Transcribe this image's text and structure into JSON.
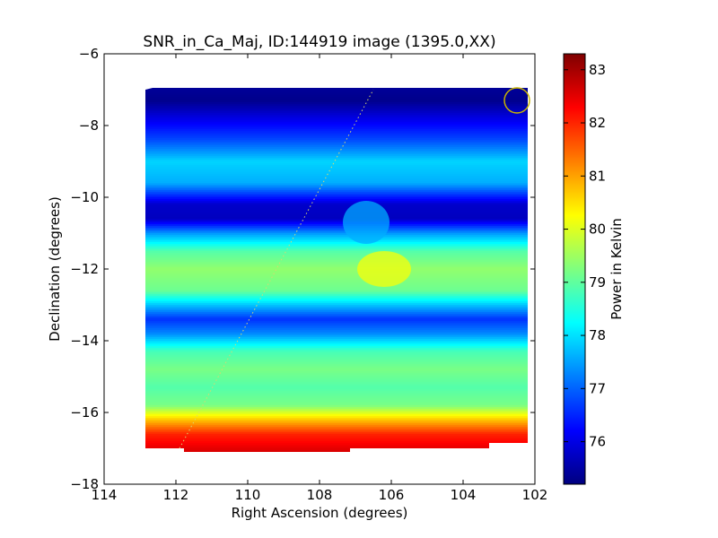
{
  "chart_data": {
    "type": "heatmap",
    "title": "SNR_in_Ca_Maj, ID:144919 image (1395.0,XX)",
    "xlabel": "Right Ascension (degrees)",
    "ylabel": "Declination (degrees)",
    "xlim": [
      114,
      102
    ],
    "ylim": [
      -18,
      -6
    ],
    "x_ticks": [
      114,
      112,
      110,
      108,
      106,
      104,
      102
    ],
    "x_tick_labels": [
      "114",
      "112",
      "110",
      "108",
      "106",
      "104",
      "102"
    ],
    "y_ticks": [
      -6,
      -8,
      -10,
      -12,
      -14,
      -16,
      -18
    ],
    "y_tick_labels": [
      "−6",
      "−8",
      "−10",
      "−12",
      "−14",
      "−16",
      "−18"
    ],
    "image_extent": {
      "ra_min": 102.2,
      "ra_max": 112.9,
      "dec_min": -17.1,
      "dec_max": -6.95
    },
    "dec_profile": {
      "dec": [
        -6.95,
        -7.3,
        -7.8,
        -8.4,
        -9.0,
        -9.6,
        -10.2,
        -10.6,
        -11.0,
        -11.5,
        -12.0,
        -12.6,
        -13.0,
        -13.4,
        -13.8,
        -14.3,
        -14.8,
        -15.3,
        -15.8,
        -16.2,
        -16.6,
        -17.1
      ],
      "power": [
        75.4,
        75.3,
        76.0,
        76.8,
        77.9,
        77.6,
        75.8,
        75.7,
        77.4,
        78.9,
        79.4,
        79.1,
        77.8,
        76.6,
        77.3,
        78.8,
        79.2,
        78.9,
        79.2,
        80.7,
        82.0,
        82.6
      ]
    },
    "features": [
      {
        "ra": 106.2,
        "dec": -12.0,
        "power": 80.2,
        "label": "bright spot"
      },
      {
        "ra": 106.7,
        "dec": -10.7,
        "power": 77.6,
        "label": "gap in dark band"
      }
    ],
    "source_track": {
      "ra_start": 111.9,
      "dec_start": -17.0,
      "ra_end": 106.5,
      "dec_end": -7.0
    },
    "beam_circle": {
      "ra": 102.5,
      "dec": -7.3,
      "radius_deg": 0.35
    },
    "colorbar": {
      "label": "Power in Kelvin",
      "min": 75.2,
      "max": 83.3,
      "ticks": [
        76,
        77,
        78,
        79,
        80,
        81,
        82,
        83
      ],
      "tick_labels": [
        "76",
        "77",
        "78",
        "79",
        "80",
        "81",
        "82",
        "83"
      ]
    },
    "colormap": "jet",
    "grid": false
  },
  "colors": {
    "track": "#d8d870",
    "beam_circle": "#c8b400",
    "jet_stops": [
      "#00007f",
      "#0000ff",
      "#007fff",
      "#00ffff",
      "#7fff7f",
      "#ffff00",
      "#ff7f00",
      "#ff0000",
      "#7f0000"
    ]
  }
}
